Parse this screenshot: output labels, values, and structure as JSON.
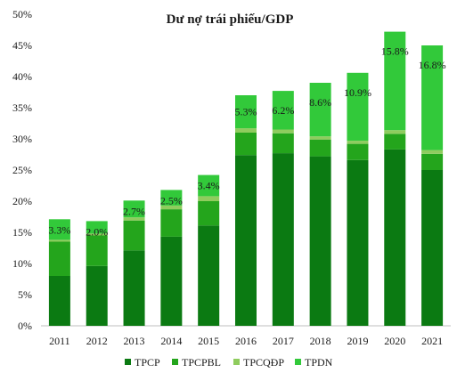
{
  "chart_data": {
    "type": "bar",
    "stacked": true,
    "title": "Dư nợ trái phiếu/GDP",
    "xlabel": "",
    "ylabel": "",
    "ylim": [
      0,
      50
    ],
    "yticks": [
      0,
      5,
      10,
      15,
      20,
      25,
      30,
      35,
      40,
      45,
      50
    ],
    "ytick_labels": [
      "0%",
      "5%",
      "10%",
      "15%",
      "20%",
      "25%",
      "30%",
      "35%",
      "40%",
      "45%",
      "50%"
    ],
    "categories": [
      "2011",
      "2012",
      "2013",
      "2014",
      "2015",
      "2016",
      "2017",
      "2018",
      "2019",
      "2020",
      "2021"
    ],
    "series": [
      {
        "name": "TPCP",
        "color": "#0b7a12",
        "values": [
          8.0,
          9.6,
          12.1,
          14.3,
          16.1,
          27.4,
          27.7,
          27.2,
          26.6,
          28.3,
          25.0
        ]
      },
      {
        "name": "TPCPBL",
        "color": "#24a51c",
        "values": [
          5.5,
          4.9,
          4.8,
          4.4,
          3.9,
          3.6,
          3.2,
          2.7,
          2.6,
          2.5,
          2.6
        ]
      },
      {
        "name": "TPCQĐP",
        "color": "#8fcc5e",
        "values": [
          0.3,
          0.3,
          0.5,
          0.6,
          0.8,
          0.7,
          0.6,
          0.5,
          0.5,
          0.6,
          0.6
        ]
      },
      {
        "name": "TPDN",
        "color": "#32c93a",
        "values": [
          3.3,
          2.0,
          2.7,
          2.5,
          3.4,
          5.3,
          6.2,
          8.6,
          10.9,
          15.8,
          16.8
        ]
      }
    ],
    "data_labels": [
      "3.3%",
      "2.0%",
      "2.7%",
      "2.5%",
      "3.4%",
      "5.3%",
      "6.2%",
      "8.6%",
      "10.9%",
      "15.8%",
      "16.8%"
    ],
    "legend": {
      "position": "bottom",
      "entries": [
        "TPCP",
        "TPCPBL",
        "TPCQĐP",
        "TPDN"
      ]
    },
    "grid": false
  }
}
